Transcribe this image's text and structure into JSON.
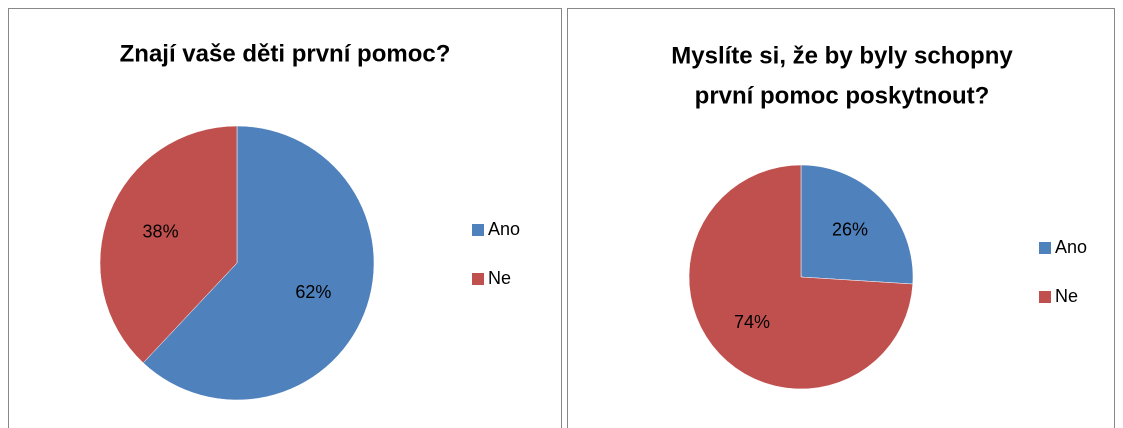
{
  "chart_data": [
    {
      "type": "pie",
      "title": [
        "Znají vaše děti první pomoc?"
      ],
      "categories": [
        "Ano",
        "Ne"
      ],
      "values": [
        62,
        38
      ],
      "value_labels": [
        "62%",
        "38%"
      ],
      "colors": [
        "#4f81bd",
        "#c0504d"
      ],
      "legend": "right"
    },
    {
      "type": "pie",
      "title": [
        "Myslíte si, že by byly schopny",
        "první pomoc poskytnout?"
      ],
      "categories": [
        "Ano",
        "Ne"
      ],
      "values": [
        26,
        74
      ],
      "value_labels": [
        "26%",
        "74%"
      ],
      "colors": [
        "#4f81bd",
        "#c0504d"
      ],
      "legend": "right"
    }
  ]
}
